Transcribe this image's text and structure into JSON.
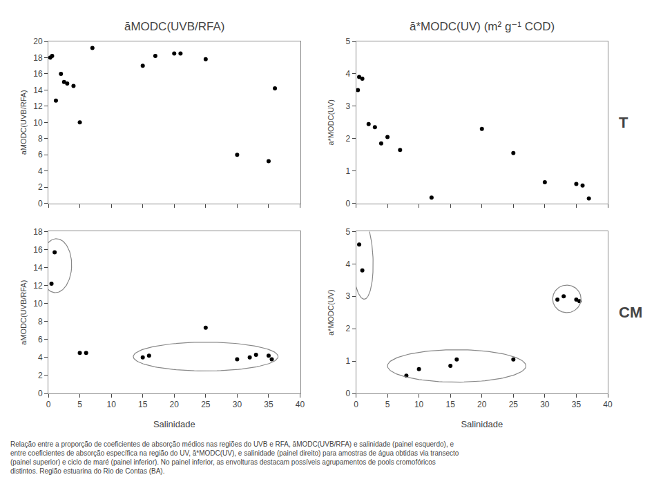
{
  "chart_data": [
    {
      "type": "scatter",
      "title": "āMODC(UVB/RFA)",
      "x": [
        0.3,
        0.6,
        1.2,
        2.0,
        2.5,
        3.0,
        4.0,
        5.0,
        7.0,
        15.0,
        17.0,
        20.0,
        21.0,
        25.0,
        30.0,
        35.0,
        36.0
      ],
      "values": [
        18.0,
        18.2,
        12.7,
        16.0,
        15.0,
        14.8,
        14.5,
        10.0,
        19.2,
        17.0,
        18.2,
        18.5,
        18.5,
        17.8,
        6.0,
        5.2,
        14.2
      ],
      "color": "#000000",
      "ylabel": "aMODC(UVB/RFA)",
      "xlim": [
        0,
        40
      ],
      "xticks": [
        0,
        5,
        10,
        15,
        20,
        25,
        30,
        35,
        40
      ],
      "ylim": [
        0,
        20
      ],
      "yticks": [
        0,
        2,
        4,
        6,
        8,
        10,
        12,
        14,
        16,
        18,
        20
      ],
      "grid": false,
      "tick_labels": "y"
    },
    {
      "type": "scatter",
      "title": "ā*MODC(UV) (m² g⁻¹ COD)",
      "x": [
        0.3,
        0.5,
        1.0,
        2.0,
        3.0,
        4.0,
        5.0,
        7.0,
        12.0,
        20.0,
        25.0,
        30.0,
        35.0,
        36.0,
        37.0
      ],
      "values": [
        3.5,
        3.9,
        3.85,
        2.45,
        2.35,
        1.85,
        2.05,
        1.65,
        0.18,
        2.3,
        1.55,
        0.65,
        0.6,
        0.55,
        0.15
      ],
      "color": "#000000",
      "ylabel": "a*MODC(UV)",
      "xlim": [
        0,
        40
      ],
      "xticks": [
        0,
        5,
        10,
        15,
        20,
        25,
        30,
        35,
        40
      ],
      "ylim": [
        0,
        5
      ],
      "yticks": [
        0,
        1,
        2,
        3,
        4,
        5
      ],
      "grid": false,
      "tick_labels": "y",
      "annotations": [
        {
          "text": "T"
        }
      ]
    },
    {
      "type": "scatter",
      "x": [
        0.5,
        1.0,
        5.0,
        6.0,
        15.0,
        16.0,
        25.0,
        30.0,
        32.0,
        33.0,
        35.0,
        35.5
      ],
      "values": [
        12.2,
        15.7,
        4.5,
        4.5,
        4.0,
        4.2,
        7.3,
        3.8,
        4.0,
        4.3,
        4.2,
        3.8
      ],
      "color": "#000000",
      "xlabel": "Salinidade",
      "ylabel": "aMODC(UVB/RFA)",
      "xlim": [
        0,
        40
      ],
      "xticks": [
        0,
        5,
        10,
        15,
        20,
        25,
        30,
        35,
        40
      ],
      "ylim": [
        0,
        18
      ],
      "yticks": [
        0,
        2,
        4,
        6,
        8,
        10,
        12,
        14,
        16,
        18
      ],
      "grid": false,
      "ellipses": [
        {
          "cx": 1.2,
          "cy": 14.2,
          "width": 5.0,
          "height": 6.0,
          "angle": -5
        },
        {
          "cx": 25.0,
          "cy": 4.1,
          "width": 23.0,
          "height": 3.2,
          "angle": 0
        }
      ]
    },
    {
      "type": "scatter",
      "x": [
        0.5,
        1.0,
        8.0,
        10.0,
        15.0,
        16.0,
        25.0,
        32.0,
        33.0,
        35.0,
        35.5
      ],
      "values": [
        4.6,
        3.8,
        0.55,
        0.75,
        0.85,
        1.05,
        1.05,
        2.9,
        3.0,
        2.9,
        2.85
      ],
      "color": "#000000",
      "xlabel": "Salinidade",
      "ylabel": "a*MODC(UV)",
      "xlim": [
        0,
        40
      ],
      "xticks": [
        0,
        5,
        10,
        15,
        20,
        25,
        30,
        35,
        40
      ],
      "ylim": [
        0,
        5
      ],
      "yticks": [
        0,
        1,
        2,
        3,
        4,
        5
      ],
      "grid": false,
      "annotations": [
        {
          "text": "CM"
        }
      ],
      "ellipses": [
        {
          "cx": 1.0,
          "cy": 4.2,
          "width": 3.5,
          "height": 2.5,
          "angle": -15
        },
        {
          "cx": 16.0,
          "cy": 0.85,
          "width": 22.0,
          "height": 1.0,
          "angle": 0
        },
        {
          "cx": 33.5,
          "cy": 2.92,
          "width": 4.5,
          "height": 0.85,
          "angle": 0
        }
      ]
    }
  ],
  "caption": "Relação entre a proporção de coeficientes de absorção médios nas regiões do UVB e RFA, āMODC(UVB/RFA) e salinidade (painel esquerdo), e\nentre coeficientes de absorção específica na região do UV, ā*MODC(UV), e salinidade (painel direito) para amostras de água obtidas via transecto\n(painel superior) e ciclo de maré (painel inferior). No painel inferior, as envolturas destacam possíveis agrupamentos de pools cromofóricos\ndistintos. Região estuarina do Rio de Contas (BA)."
}
